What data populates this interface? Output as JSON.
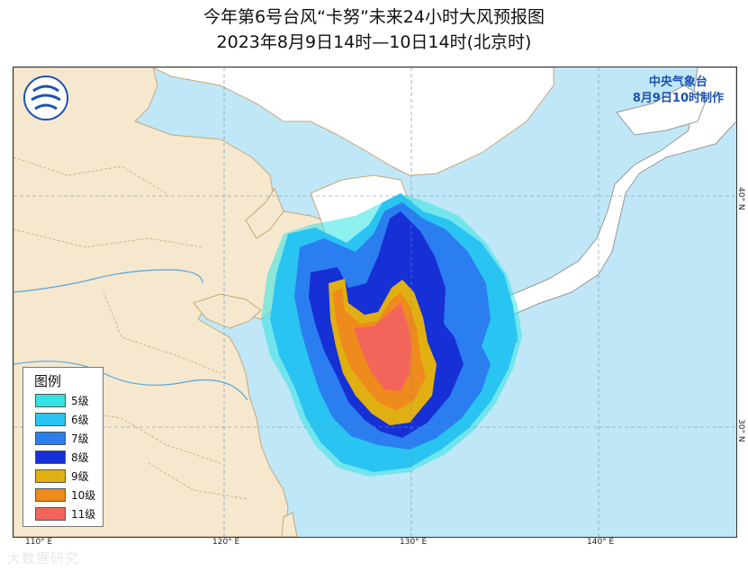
{
  "title": "今年第6号台风“卡努”未来24小时大风预报图",
  "subtitle": "2023年8月9日14时—10日14时(北京时)",
  "issuer": {
    "name": "中央气象台",
    "time": "8月9日10时制作"
  },
  "legend": {
    "title": "图例",
    "items": [
      {
        "label": "5级",
        "color": "#33e3e3"
      },
      {
        "label": "6级",
        "color": "#29c4f2"
      },
      {
        "label": "7级",
        "color": "#2b7ef0"
      },
      {
        "label": "8级",
        "color": "#1630d6"
      },
      {
        "label": "9级",
        "color": "#e0b012"
      },
      {
        "label": "10级",
        "color": "#ef8a1c"
      },
      {
        "label": "11级",
        "color": "#f3655a"
      }
    ]
  },
  "axes": {
    "lon_labels": [
      "110° E",
      "120° E",
      "130° E",
      "140° E"
    ],
    "lat_labels": [
      "40° N",
      "30° N"
    ]
  },
  "watermark": "大数据研究",
  "colors": {
    "sea": "#bfe7f7",
    "land_china": "#f5e8cf",
    "land_other": "#ffffff",
    "boundary": "#c9a778",
    "river": "#5aa6dc"
  }
}
